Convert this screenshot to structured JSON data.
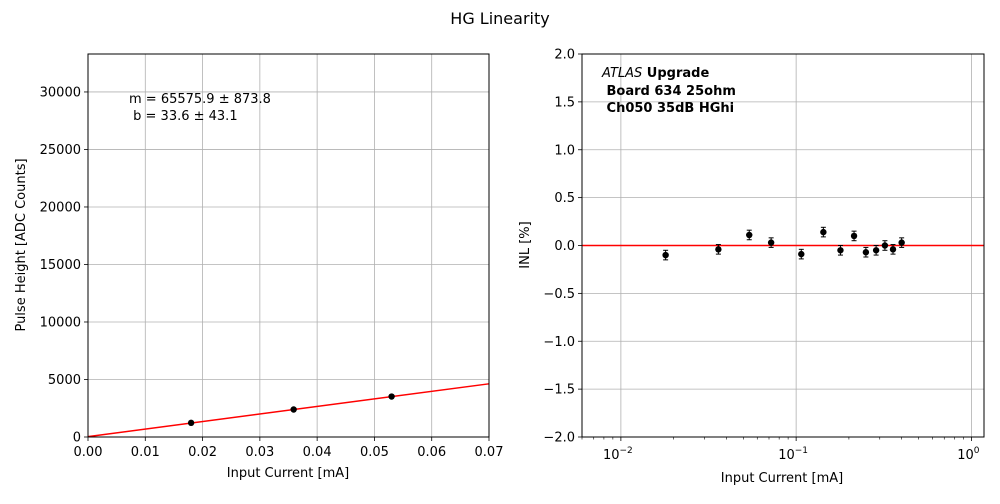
{
  "title": "HG Linearity",
  "chart_data": [
    {
      "type": "scatter",
      "xlabel": "Input Current [mA]",
      "ylabel": "Pulse Height [ADC Counts]",
      "xlim": [
        0,
        0.07
      ],
      "ylim": [
        0,
        33300
      ],
      "xticks": [
        0,
        0.01,
        0.02,
        0.03,
        0.04,
        0.05,
        0.06,
        0.07
      ],
      "xtick_labels": [
        "0.00",
        "0.01",
        "0.02",
        "0.03",
        "0.04",
        "0.05",
        "0.06",
        "0.07"
      ],
      "yticks": [
        0,
        5000,
        10000,
        15000,
        20000,
        25000,
        30000
      ],
      "ytick_labels": [
        "0",
        "5000",
        "10000",
        "15000",
        "20000",
        "25000",
        "30000"
      ],
      "grid": true,
      "points": [
        {
          "x": 0.018,
          "y": 1230
        },
        {
          "x": 0.0359,
          "y": 2390
        },
        {
          "x": 0.053,
          "y": 3520
        }
      ],
      "fit": {
        "slope": 65575.9,
        "intercept": 33.6,
        "color": "#ff0000"
      },
      "annotation": {
        "line1": "m = 65575.9 ± 873.8",
        "line2": " b = 33.6 ± 43.1"
      }
    },
    {
      "type": "scatter",
      "xscale": "log",
      "xlabel": "Input Current [mA]",
      "ylabel": "INL [%]",
      "xlim": [
        0.006,
        1.18
      ],
      "ylim": [
        -2.0,
        2.0
      ],
      "xticks": [
        0.01,
        0.1,
        1
      ],
      "xtick_labels": [
        {
          "base": "10",
          "exp": "−2"
        },
        {
          "base": "10",
          "exp": "−1"
        },
        {
          "base": "10",
          "exp": "0"
        }
      ],
      "yticks": [
        -2.0,
        -1.5,
        -1.0,
        -0.5,
        0.0,
        0.5,
        1.0,
        1.5,
        2.0
      ],
      "ytick_labels": [
        "−2.0",
        "−1.5",
        "−1.0",
        "−0.5",
        "0.0",
        "0.5",
        "1.0",
        "1.5",
        "2.0"
      ],
      "grid": true,
      "reference_line": {
        "y": 0.0,
        "color": "#ff0000"
      },
      "points": [
        {
          "x": 0.018,
          "y": -0.1,
          "err": 0.05
        },
        {
          "x": 0.036,
          "y": -0.04,
          "err": 0.05
        },
        {
          "x": 0.054,
          "y": 0.11,
          "err": 0.05
        },
        {
          "x": 0.072,
          "y": 0.03,
          "err": 0.05
        },
        {
          "x": 0.107,
          "y": -0.09,
          "err": 0.05
        },
        {
          "x": 0.143,
          "y": 0.14,
          "err": 0.05
        },
        {
          "x": 0.179,
          "y": -0.05,
          "err": 0.05
        },
        {
          "x": 0.214,
          "y": 0.1,
          "err": 0.05
        },
        {
          "x": 0.25,
          "y": -0.07,
          "err": 0.05
        },
        {
          "x": 0.286,
          "y": -0.05,
          "err": 0.05
        },
        {
          "x": 0.321,
          "y": 0.0,
          "err": 0.05
        },
        {
          "x": 0.357,
          "y": -0.04,
          "err": 0.05
        },
        {
          "x": 0.4,
          "y": 0.03,
          "err": 0.05
        }
      ],
      "annotation": {
        "atlas": "ATLAS",
        "upgrade": " Upgrade",
        "line2": " Board 634 25ohm",
        "line3": " Ch050 35dB HGhi"
      }
    }
  ]
}
